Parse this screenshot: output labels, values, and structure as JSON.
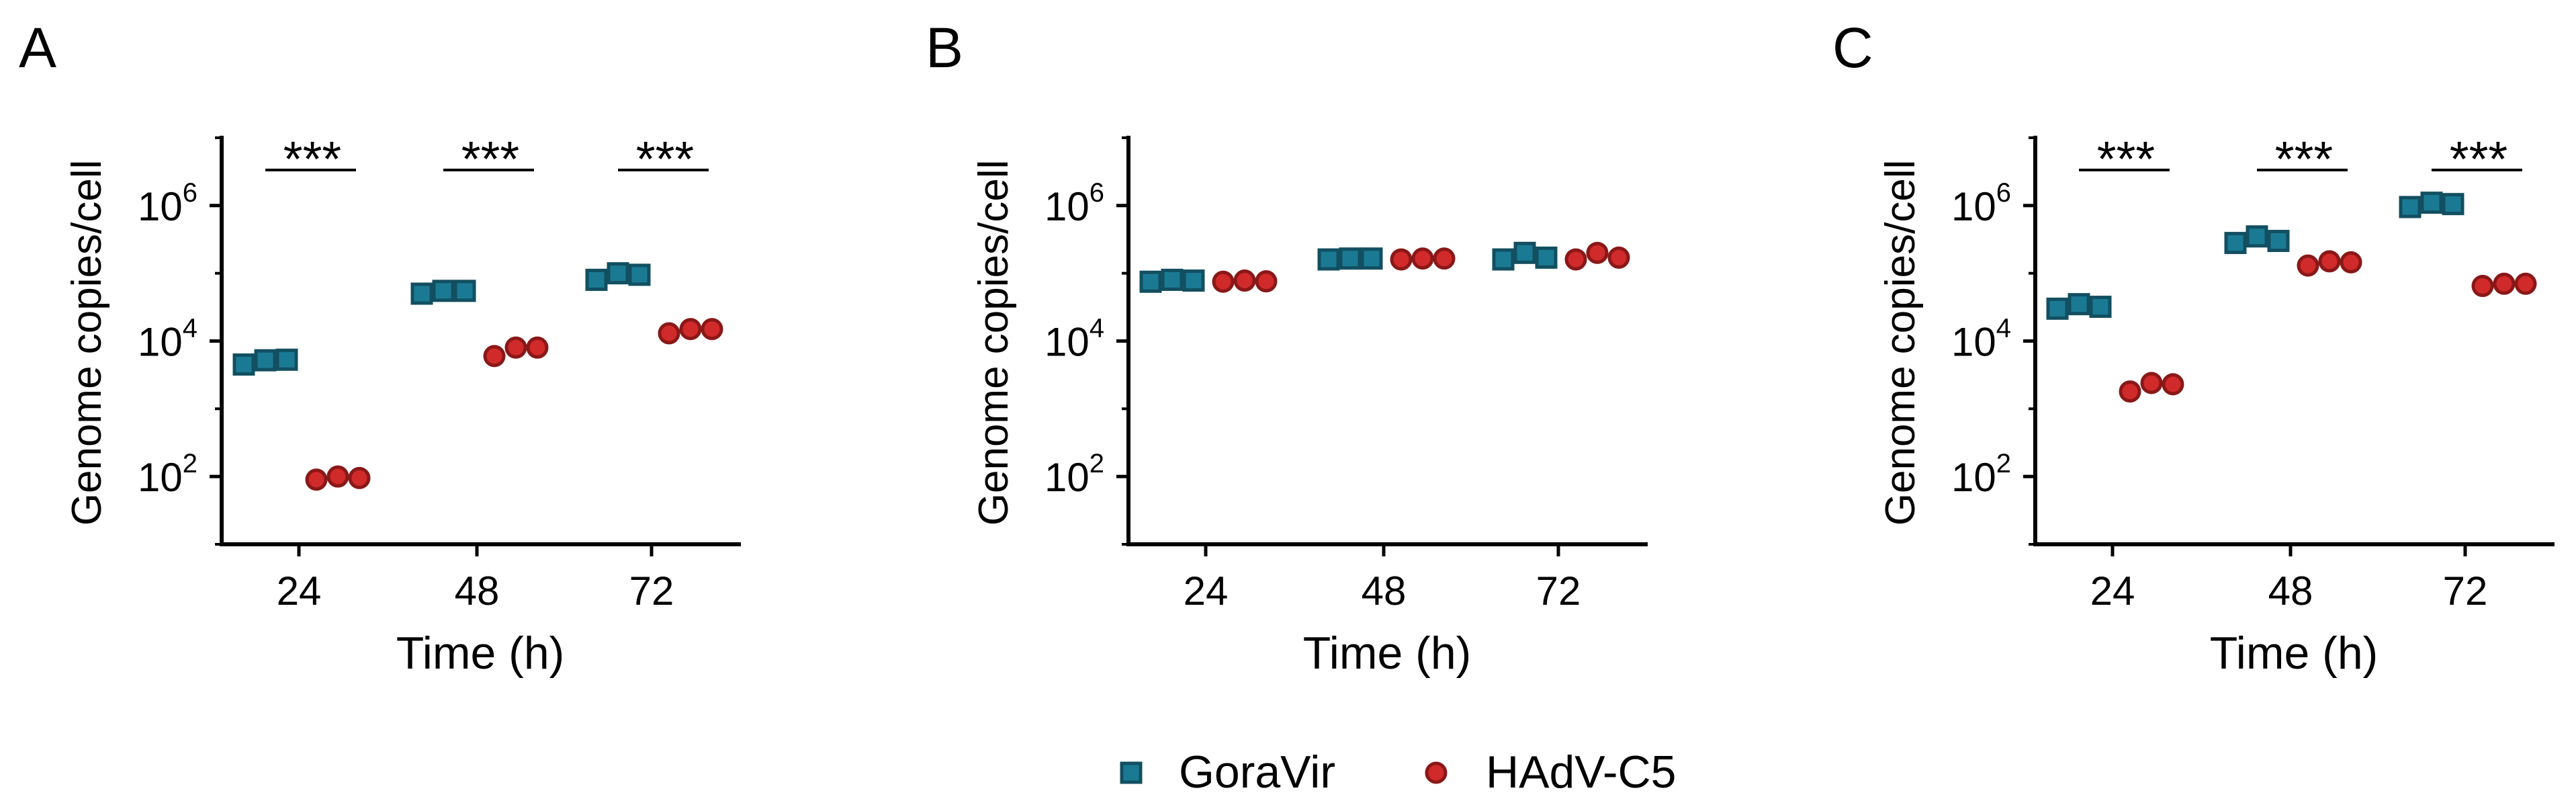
{
  "colors": {
    "goravir_fill": "#1b7a93",
    "goravir_stroke": "#124f60",
    "hadv_fill": "#d12a2a",
    "hadv_stroke": "#8a1818",
    "axis": "#000000"
  },
  "legend": [
    {
      "name": "GoraVir",
      "marker": "square"
    },
    {
      "name": "HAdV-C5",
      "marker": "circle"
    }
  ],
  "chart_data": [
    {
      "type": "scatter",
      "panel_label": "A",
      "xlabel": "Time (h)",
      "ylabel": "Genome copies/cell",
      "yscale": "log10",
      "ylim": [
        10,
        10000000
      ],
      "yticks": [
        {
          "base": "10",
          "exp": "2",
          "value": 100
        },
        {
          "base": "10",
          "exp": "4",
          "value": 10000
        },
        {
          "base": "10",
          "exp": "6",
          "value": 1000000
        }
      ],
      "categories": [
        "24",
        "48",
        "72"
      ],
      "series": [
        {
          "name": "GoraVir",
          "values": [
            [
              4500,
              5200,
              5300
            ],
            [
              50000,
              55000,
              55000
            ],
            [
              80000,
              100000,
              95000
            ]
          ]
        },
        {
          "name": "HAdV-C5",
          "values": [
            [
              90,
              100,
              95
            ],
            [
              6000,
              8000,
              8000
            ],
            [
              13000,
              15000,
              15000
            ]
          ]
        }
      ],
      "significance": [
        "***",
        "***",
        "***"
      ]
    },
    {
      "type": "scatter",
      "panel_label": "B",
      "xlabel": "Time (h)",
      "ylabel": "Genome copies/cell",
      "yscale": "log10",
      "ylim": [
        10,
        10000000
      ],
      "yticks": [
        {
          "base": "10",
          "exp": "2",
          "value": 100
        },
        {
          "base": "10",
          "exp": "4",
          "value": 10000
        },
        {
          "base": "10",
          "exp": "6",
          "value": 1000000
        }
      ],
      "categories": [
        "24",
        "48",
        "72"
      ],
      "series": [
        {
          "name": "GoraVir",
          "values": [
            [
              75000,
              80000,
              78000
            ],
            [
              160000,
              165000,
              165000
            ],
            [
              160000,
              200000,
              170000
            ]
          ]
        },
        {
          "name": "HAdV-C5",
          "values": [
            [
              75000,
              78000,
              76000
            ],
            [
              160000,
              165000,
              165000
            ],
            [
              160000,
              200000,
              170000
            ]
          ]
        }
      ],
      "significance": [
        "",
        "",
        ""
      ]
    },
    {
      "type": "scatter",
      "panel_label": "C",
      "xlabel": "Time (h)",
      "ylabel": "Genome copies/cell",
      "yscale": "log10",
      "ylim": [
        10,
        10000000
      ],
      "yticks": [
        {
          "base": "10",
          "exp": "2",
          "value": 100
        },
        {
          "base": "10",
          "exp": "4",
          "value": 10000
        },
        {
          "base": "10",
          "exp": "6",
          "value": 1000000
        }
      ],
      "categories": [
        "24",
        "48",
        "72"
      ],
      "series": [
        {
          "name": "GoraVir",
          "values": [
            [
              30000,
              35000,
              32000
            ],
            [
              280000,
              350000,
              300000
            ],
            [
              950000,
              1100000,
              1050000
            ]
          ]
        },
        {
          "name": "HAdV-C5",
          "values": [
            [
              1800,
              2400,
              2300
            ],
            [
              130000,
              150000,
              145000
            ],
            [
              65000,
              70000,
              70000
            ]
          ]
        }
      ],
      "significance": [
        "***",
        "***",
        "***"
      ]
    }
  ]
}
